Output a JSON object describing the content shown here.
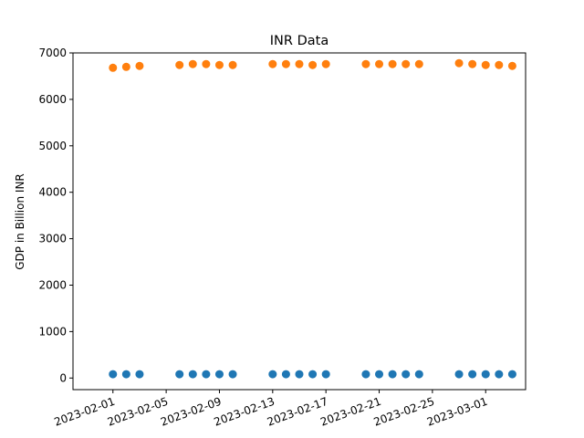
{
  "chart_data": {
    "type": "scatter",
    "title": "INR Data",
    "xlabel": "",
    "ylabel": "GDP in Billion INR",
    "ylim": [
      -250,
      7000
    ],
    "xlim": [
      "2023-01-29",
      "2023-03-04"
    ],
    "y_ticks": [
      0,
      1000,
      2000,
      3000,
      4000,
      5000,
      6000,
      7000
    ],
    "x_ticks": [
      "2023-02-01",
      "2023-02-05",
      "2023-02-09",
      "2023-02-13",
      "2023-02-17",
      "2023-02-21",
      "2023-02-25",
      "2023-03-01"
    ],
    "grid": false,
    "colors": [
      "#1f77b4",
      "#ff7f0e"
    ],
    "x": [
      "2023-02-01",
      "2023-02-02",
      "2023-02-03",
      "2023-02-06",
      "2023-02-07",
      "2023-02-08",
      "2023-02-09",
      "2023-02-10",
      "2023-02-13",
      "2023-02-14",
      "2023-02-15",
      "2023-02-16",
      "2023-02-17",
      "2023-02-20",
      "2023-02-21",
      "2023-02-22",
      "2023-02-23",
      "2023-02-24",
      "2023-02-27",
      "2023-02-28",
      "2023-03-01",
      "2023-03-02",
      "2023-03-03"
    ],
    "series": [
      {
        "values": [
          82,
          82,
          82,
          82,
          82,
          82,
          82,
          82,
          82,
          82,
          82,
          82,
          82,
          82,
          82,
          82,
          82,
          82,
          82,
          82,
          82,
          82,
          82
        ]
      },
      {
        "values": [
          6680,
          6700,
          6720,
          6740,
          6760,
          6760,
          6740,
          6740,
          6760,
          6760,
          6760,
          6740,
          6760,
          6760,
          6760,
          6760,
          6760,
          6760,
          6780,
          6760,
          6740,
          6740,
          6720
        ]
      }
    ]
  }
}
